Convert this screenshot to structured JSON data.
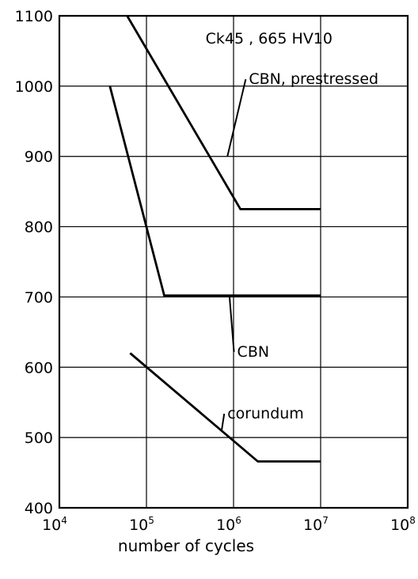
{
  "chart_data": {
    "type": "line",
    "title": "Ck45 , 665 HV10",
    "xlabel": "number of cycles",
    "ylabel": "",
    "x_scale": "log",
    "xlim": [
      10000,
      100000000
    ],
    "ylim": [
      400,
      1100
    ],
    "x_ticks": [
      {
        "value": 10000,
        "base": "10",
        "exp": "4"
      },
      {
        "value": 100000,
        "base": "10",
        "exp": "5"
      },
      {
        "value": 1000000,
        "base": "10",
        "exp": "6"
      },
      {
        "value": 10000000,
        "base": "10",
        "exp": "7"
      },
      {
        "value": 100000000,
        "base": "10",
        "exp": "8"
      }
    ],
    "y_ticks": [
      400,
      500,
      600,
      700,
      800,
      900,
      1000,
      1100
    ],
    "grid": true,
    "series": [
      {
        "name": "CBN, prestressed",
        "x": [
          60000,
          1200000,
          10000000
        ],
        "y": [
          1100,
          825,
          825
        ],
        "label_x": 1500000,
        "label_y": 1003,
        "leader_from": [
          850000,
          900
        ]
      },
      {
        "name": "CBN",
        "x": [
          38000,
          160000,
          10000000
        ],
        "y": [
          1000,
          702,
          702
        ],
        "label_x": 1100000,
        "label_y": 615,
        "leader_from": [
          900000,
          700
        ]
      },
      {
        "name": "corundum",
        "x": [
          65000,
          1900000,
          10000000
        ],
        "y": [
          620,
          466,
          466
        ],
        "label_x": 850000,
        "label_y": 527,
        "leader_from": [
          730000,
          510
        ]
      }
    ]
  }
}
